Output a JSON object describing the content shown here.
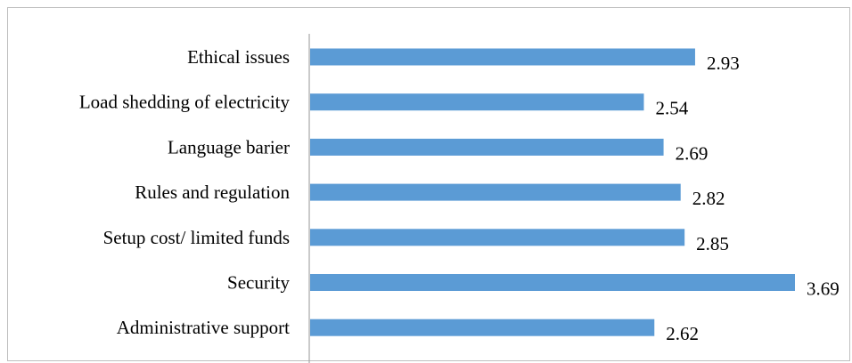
{
  "chart_data": {
    "type": "bar",
    "orientation": "horizontal",
    "categories": [
      "Ethical issues",
      "Load shedding of electricity",
      "Language barier",
      "Rules and regulation",
      "Setup cost/ limited funds",
      "Security",
      "Administrative support"
    ],
    "values": [
      2.93,
      2.54,
      2.69,
      2.82,
      2.85,
      3.69,
      2.62
    ],
    "value_labels": [
      "2.93",
      "2.54",
      "2.69",
      "2.82",
      "2.85",
      "3.69",
      "2.62"
    ],
    "title": "",
    "xlabel": "",
    "ylabel": "",
    "xlim": [
      0,
      3.69
    ],
    "grid": false,
    "legend": "none",
    "bar_color": "#5b9bd5",
    "axis_color": "#a6a6a6"
  }
}
